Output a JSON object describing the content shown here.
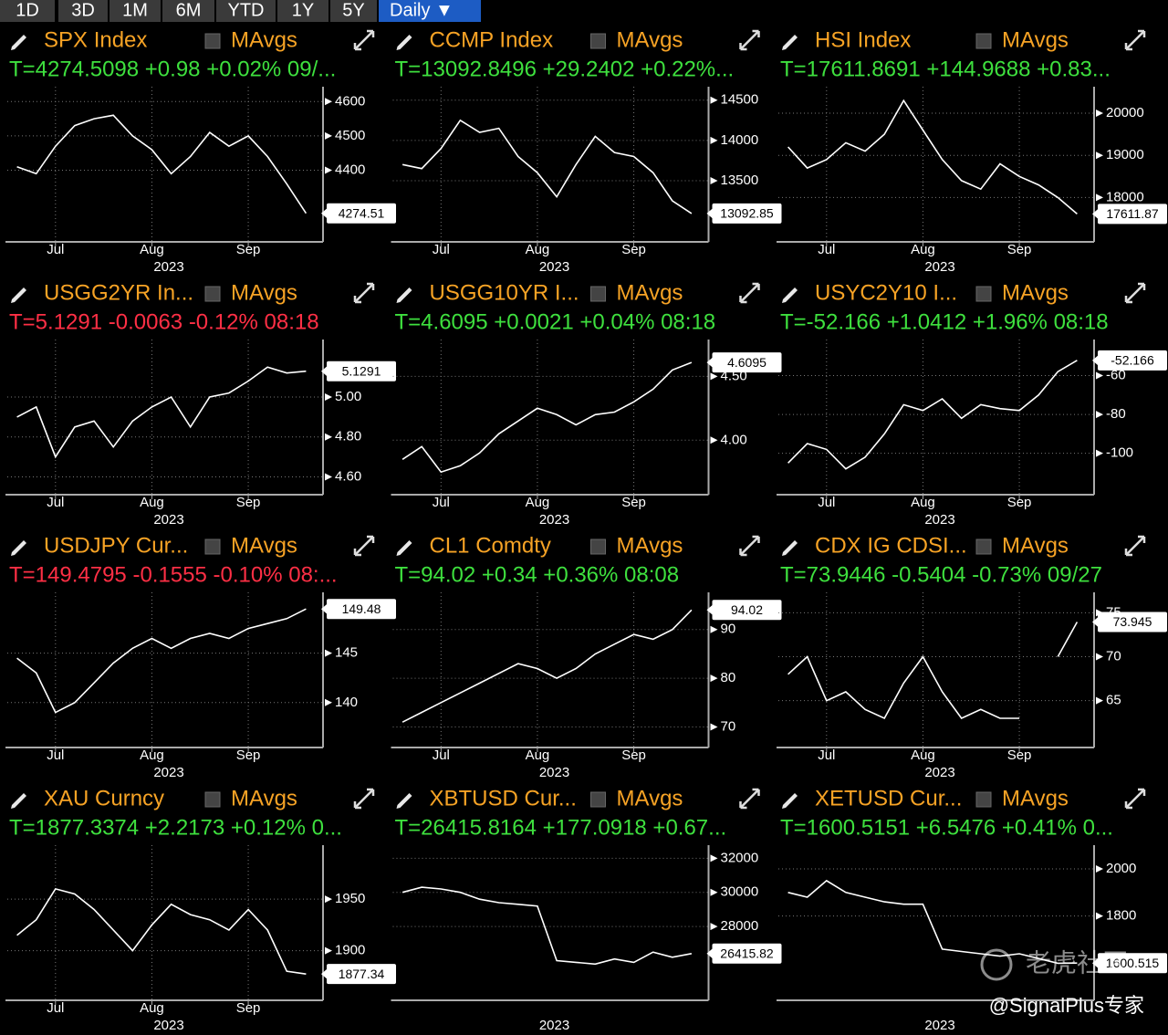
{
  "toolbar": {
    "buttons": [
      "1D",
      "3D",
      "1M",
      "6M",
      "YTD",
      "1Y",
      "5Y",
      "Daily ▼"
    ]
  },
  "watermark": {
    "logo_text": "老虎社区",
    "handle": "@SignalPlus专家"
  },
  "chart_data": [
    {
      "type": "line",
      "title": "SPX Index",
      "mavgs_label": "MAvgs",
      "quote": "T=4274.5098 +0.98 +0.02% 09/...",
      "quote_color": "#3ee03e",
      "title_color": "#f7a325",
      "color": "#ffffff",
      "grid": true,
      "categories": [
        null,
        null,
        "Jul",
        null,
        null,
        null,
        null,
        "Aug",
        null,
        null,
        null,
        null,
        "Sep",
        null,
        null,
        null
      ],
      "x_year_label": "2023",
      "values": [
        4410,
        4390,
        4470,
        4530,
        4550,
        4560,
        4500,
        4460,
        4390,
        4440,
        4510,
        4470,
        4500,
        4440,
        4360,
        4274.51
      ],
      "last_label": "4274.51",
      "ylim": [
        4210,
        4630
      ],
      "yticks": [
        4400,
        4500,
        4600
      ]
    },
    {
      "type": "line",
      "title": "CCMP Index",
      "mavgs_label": "MAvgs",
      "quote": "T=13092.8496 +29.2402 +0.22%...",
      "quote_color": "#3ee03e",
      "title_color": "#f7a325",
      "color": "#ffffff",
      "grid": true,
      "categories": [
        null,
        null,
        "Jul",
        null,
        null,
        null,
        null,
        "Aug",
        null,
        null,
        null,
        null,
        "Sep",
        null,
        null,
        null
      ],
      "x_year_label": "2023",
      "values": [
        13700,
        13650,
        13900,
        14250,
        14100,
        14150,
        13800,
        13600,
        13300,
        13700,
        14050,
        13850,
        13800,
        13600,
        13250,
        13092.85
      ],
      "last_label": "13092.85",
      "ylim": [
        12820,
        14610
      ],
      "yticks": [
        13500,
        14000,
        14500
      ]
    },
    {
      "type": "line",
      "title": "HSI Index",
      "mavgs_label": "MAvgs",
      "quote": "T=17611.8691 +144.9688 +0.83...",
      "quote_color": "#3ee03e",
      "title_color": "#f7a325",
      "color": "#ffffff",
      "grid": true,
      "categories": [
        null,
        null,
        "Jul",
        null,
        null,
        null,
        null,
        "Aug",
        null,
        null,
        null,
        null,
        "Sep",
        null,
        null,
        null
      ],
      "x_year_label": "2023",
      "values": [
        19200,
        18700,
        18900,
        19300,
        19100,
        19500,
        20300,
        19600,
        18900,
        18400,
        18200,
        18800,
        18500,
        18300,
        18000,
        17611.87
      ],
      "last_label": "17611.87",
      "ylim": [
        17100,
        20520
      ],
      "yticks": [
        18000,
        19000,
        20000
      ]
    },
    {
      "type": "line",
      "title": "USGG2YR In...",
      "mavgs_label": "MAvgs",
      "quote": "T=5.1291 -0.0063 -0.12% 08:18",
      "quote_color": "#ff2f45",
      "title_color": "#f7a325",
      "color": "#ffffff",
      "grid": true,
      "categories": [
        null,
        null,
        "Jul",
        null,
        null,
        null,
        null,
        "Aug",
        null,
        null,
        null,
        null,
        "Sep",
        null,
        null,
        null
      ],
      "x_year_label": "2023",
      "values": [
        4.9,
        4.95,
        4.7,
        4.85,
        4.88,
        4.75,
        4.88,
        4.95,
        5.0,
        4.85,
        5.0,
        5.02,
        5.08,
        5.15,
        5.12,
        5.1291
      ],
      "last_label": "5.1291",
      "ylim": [
        4.543,
        5.265
      ],
      "yticks": [
        {
          "value": 4.6,
          "label": "4.60"
        },
        {
          "value": 4.8,
          "label": "4.80"
        },
        {
          "value": 5,
          "label": "5.00"
        }
      ]
    },
    {
      "type": "line",
      "title": "USGG10YR I...",
      "mavgs_label": "MAvgs",
      "quote": "T=4.6095 +0.0021 +0.04% 08:18",
      "quote_color": "#3ee03e",
      "title_color": "#f7a325",
      "color": "#ffffff",
      "grid": true,
      "categories": [
        null,
        null,
        "Jul",
        null,
        null,
        null,
        null,
        "Aug",
        null,
        null,
        null,
        null,
        "Sep",
        null,
        null,
        null
      ],
      "x_year_label": "2023",
      "values": [
        3.85,
        3.95,
        3.75,
        3.8,
        3.9,
        4.05,
        4.15,
        4.25,
        4.2,
        4.12,
        4.2,
        4.22,
        4.3,
        4.4,
        4.55,
        4.6095
      ],
      "last_label": "4.6095",
      "ylim": [
        3.623,
        4.753
      ],
      "yticks": [
        {
          "value": 4,
          "label": "4.00"
        },
        {
          "value": 4.5,
          "label": "4.50"
        }
      ]
    },
    {
      "type": "line",
      "title": "USYC2Y10 I...",
      "mavgs_label": "MAvgs",
      "quote": "T=-52.166 +1.0412 +1.96% 08:18",
      "quote_color": "#3ee03e",
      "title_color": "#f7a325",
      "color": "#ffffff",
      "grid": true,
      "categories": [
        null,
        null,
        "Jul",
        null,
        null,
        null,
        null,
        "Aug",
        null,
        null,
        null,
        null,
        "Sep",
        null,
        null,
        null
      ],
      "x_year_label": "2023",
      "values": [
        -105,
        -95,
        -98,
        -108,
        -102,
        -90,
        -75,
        -78,
        -72,
        -82,
        -75,
        -77,
        -78,
        -70,
        -58,
        -52.166
      ],
      "last_label": "-52.166",
      "ylim": [
        -118,
        -43.8
      ],
      "yticks": [
        -100,
        -80,
        -60
      ]
    },
    {
      "type": "line",
      "title": "USDJPY Cur...",
      "mavgs_label": "MAvgs",
      "quote": "T=149.4795 -0.1555 -0.10% 08:...",
      "quote_color": "#ff2f45",
      "title_color": "#f7a325",
      "color": "#ffffff",
      "grid": true,
      "categories": [
        null,
        null,
        "Jul",
        null,
        null,
        null,
        null,
        "Aug",
        null,
        null,
        null,
        null,
        "Sep",
        null,
        null,
        null
      ],
      "x_year_label": "2023",
      "values": [
        144.5,
        143,
        139,
        140,
        142,
        144,
        145.5,
        146.5,
        145.5,
        146.5,
        147,
        146.5,
        147.5,
        148,
        148.5,
        149.48
      ],
      "last_label": "149.48",
      "ylim": [
        136.1,
        150.7
      ],
      "yticks": [
        140,
        145
      ]
    },
    {
      "type": "line",
      "title": "CL1 Comdty",
      "mavgs_label": "MAvgs",
      "quote": "T=94.02 +0.34 +0.36% 08:08",
      "quote_color": "#3ee03e",
      "title_color": "#f7a325",
      "color": "#ffffff",
      "grid": true,
      "categories": [
        null,
        null,
        "Jul",
        null,
        null,
        null,
        null,
        "Aug",
        null,
        null,
        null,
        null,
        "Sep",
        null,
        null,
        null
      ],
      "x_year_label": "2023",
      "values": [
        71,
        73,
        75,
        77,
        79,
        81,
        83,
        82,
        80,
        82,
        85,
        87,
        89,
        88,
        90,
        94.02
      ],
      "last_label": "94.02",
      "ylim": [
        67.1,
        96.7
      ],
      "yticks": [
        70,
        80,
        90
      ]
    },
    {
      "type": "line",
      "title": "CDX IG CDSI...",
      "mavgs_label": "MAvgs",
      "quote": "T=73.9446 -0.5404 -0.73% 09/27",
      "quote_color": "#3ee03e",
      "title_color": "#f7a325",
      "color": "#ffffff",
      "grid": true,
      "categories": [
        null,
        null,
        "Jul",
        null,
        null,
        null,
        null,
        "Aug",
        null,
        null,
        null,
        null,
        "Sep",
        null,
        null,
        null
      ],
      "x_year_label": "2023",
      "values": [
        68,
        70,
        65,
        66,
        64,
        63,
        67,
        70,
        66,
        63,
        64,
        63,
        63,
        null,
        70,
        73.945
      ],
      "last_label": "73.945",
      "ylim": [
        60.4,
        76.8
      ],
      "yticks": [
        65,
        70,
        75
      ]
    },
    {
      "type": "line",
      "title": "XAU Curncy",
      "mavgs_label": "MAvgs",
      "quote": "T=1877.3374 +2.2173 +0.12% 0...",
      "quote_color": "#3ee03e",
      "title_color": "#f7a325",
      "color": "#ffffff",
      "grid": true,
      "categories": [
        null,
        null,
        "Jul",
        null,
        null,
        null,
        null,
        "Aug",
        null,
        null,
        null,
        null,
        "Sep",
        null,
        null,
        null
      ],
      "x_year_label": "2023",
      "values": [
        1915,
        1930,
        1960,
        1955,
        1940,
        1920,
        1900,
        1925,
        1945,
        1935,
        1930,
        1920,
        1940,
        1920,
        1880,
        1877.34
      ],
      "last_label": "1877.34",
      "ylim": [
        1858,
        1998
      ],
      "yticks": [
        1900,
        1950
      ]
    },
    {
      "type": "line",
      "title": "XBTUSD Cur...",
      "mavgs_label": "MAvgs",
      "quote": "T=26415.8164 +177.0918 +0.67...",
      "quote_color": "#3ee03e",
      "title_color": "#f7a325",
      "color": "#ffffff",
      "grid": true,
      "categories": [
        null,
        null,
        null,
        null,
        null,
        null,
        null,
        null,
        null,
        null,
        null,
        null,
        null,
        null,
        null,
        null
      ],
      "x_year_label": "2023",
      "values": [
        30000,
        30300,
        30200,
        30000,
        29600,
        29400,
        29300,
        29200,
        26000,
        25900,
        25800,
        26100,
        25900,
        26500,
        26200,
        26415.82
      ],
      "last_label": "26415.82",
      "ylim": [
        24050,
        32500
      ],
      "yticks": [
        28000,
        30000,
        32000
      ]
    },
    {
      "type": "line",
      "title": "XETUSD Cur...",
      "mavgs_label": "MAvgs",
      "quote": "T=1600.5151 +6.5476 +0.41% 0...",
      "quote_color": "#3ee03e",
      "title_color": "#f7a325",
      "color": "#ffffff",
      "grid": true,
      "categories": [
        null,
        null,
        null,
        null,
        null,
        null,
        null,
        null,
        null,
        null,
        null,
        null,
        null,
        null,
        null,
        null
      ],
      "x_year_label": "2023",
      "values": [
        1900,
        1880,
        1950,
        1900,
        1880,
        1860,
        1850,
        1850,
        1660,
        1650,
        1640,
        1630,
        1640,
        1620,
        1600,
        1600.5151
      ],
      "last_label": "1600.515",
      "ylim": [
        1470,
        2081
      ],
      "yticks": [
        1800,
        2000
      ]
    }
  ]
}
